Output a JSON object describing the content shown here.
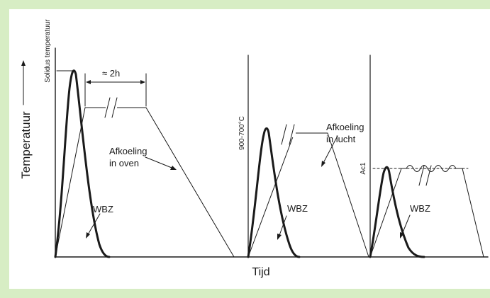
{
  "labels": {
    "y_axis": "Temperatuur",
    "x_axis": "Tijd",
    "solidus": "Solidus temperatuur",
    "duration": "≈ 2h",
    "cooling_oven_1": "Afkoeling",
    "cooling_oven_2": "in oven",
    "range_900_700": "900-700°C",
    "cooling_air_1": "Afkoeling",
    "cooling_air_2": "in lucht",
    "ac1": "Ac1",
    "wbz_1": "WBZ",
    "wbz_2": "WBZ",
    "wbz_3": "WBZ"
  },
  "colors": {
    "frame_background": "#d7edc4",
    "panel_background": "#ffffff",
    "line": "#1a1a1a"
  }
}
